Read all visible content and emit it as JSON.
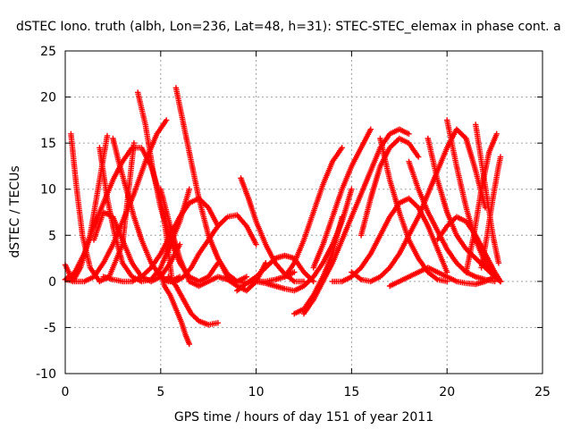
{
  "chart_data": {
    "type": "scatter",
    "title": "dSTEC Iono. truth (albh, Lon=236, Lat=48, h=31): STEC-STEC_elemax in phase cont. a",
    "xlabel": "GPS time / hours of day 151 of year 2011",
    "ylabel": "dSTEC  / TECUs",
    "xlim": [
      0,
      25
    ],
    "ylim": [
      -10,
      25
    ],
    "xticks": [
      "0",
      "5",
      "10",
      "15",
      "20",
      "25"
    ],
    "yticks": [
      "-10",
      "-5",
      "0",
      "5",
      "10",
      "15",
      "20",
      "25"
    ],
    "grid": true,
    "marker": "+",
    "color": "#ff0000",
    "series": [
      {
        "x": [
          0.0,
          0.4,
          0.8,
          1.3,
          1.8,
          2.2
        ],
        "y": [
          1.8,
          0.0,
          1.5,
          5.0,
          11.0,
          15.8
        ]
      },
      {
        "x": [
          0.3,
          0.6,
          0.9,
          1.3,
          1.8,
          2.3,
          3.0,
          3.6
        ],
        "y": [
          16.0,
          10.0,
          5.0,
          1.5,
          0.0,
          0.5,
          4.0,
          15.0
        ]
      },
      {
        "x": [
          0.0,
          0.5,
          1.0,
          1.5,
          2.0,
          2.5,
          3.0,
          3.5,
          4.0,
          4.5,
          5.0,
          5.3,
          5.6
        ],
        "y": [
          0.2,
          1.0,
          3.0,
          6.0,
          8.5,
          11.0,
          13.0,
          14.5,
          14.5,
          12.5,
          9.0,
          5.0,
          0.0
        ]
      },
      {
        "x": [
          0.0,
          0.5,
          1.0,
          1.5,
          2.0,
          2.5,
          3.0,
          3.6,
          4.2,
          4.8,
          5.3
        ],
        "y": [
          0.2,
          0.0,
          0.0,
          0.5,
          2.0,
          4.0,
          6.5,
          9.5,
          13.0,
          16.0,
          17.5
        ]
      },
      {
        "x": [
          1.5,
          2.0,
          2.5,
          3.0,
          3.5,
          4.0,
          4.5,
          5.0,
          5.5,
          6.0
        ],
        "y": [
          4.5,
          7.5,
          7.0,
          4.5,
          2.0,
          0.5,
          0.0,
          0.5,
          2.0,
          4.0
        ]
      },
      {
        "x": [
          1.8,
          2.2,
          2.6,
          3.0,
          3.5,
          4.0,
          4.5,
          5.0,
          5.5,
          6.0,
          6.5
        ],
        "y": [
          14.5,
          9.0,
          5.0,
          2.0,
          0.5,
          0.0,
          0.2,
          1.5,
          4.0,
          6.5,
          10.0
        ]
      },
      {
        "x": [
          2.0,
          2.5,
          3.0,
          3.5,
          4.0,
          4.5,
          5.0,
          5.5,
          6.0,
          6.5,
          7.0,
          7.5,
          8.0
        ],
        "y": [
          0.5,
          0.2,
          0.0,
          0.0,
          0.5,
          1.5,
          3.0,
          5.0,
          7.0,
          8.5,
          9.0,
          8.0,
          6.0
        ]
      },
      {
        "x": [
          2.5,
          2.8,
          3.2,
          3.6,
          4.0,
          4.5,
          5.0,
          5.5,
          6.0
        ],
        "y": [
          15.5,
          13.0,
          10.0,
          7.0,
          4.5,
          2.0,
          0.5,
          0.0,
          0.5
        ]
      },
      {
        "x": [
          3.8,
          4.2,
          4.6,
          5.0,
          5.5,
          6.0,
          6.5,
          7.0,
          7.5,
          8.0
        ],
        "y": [
          20.5,
          17.0,
          12.0,
          8.0,
          4.5,
          2.0,
          0.5,
          0.0,
          0.5,
          2.0
        ]
      },
      {
        "x": [
          5.0,
          5.4,
          5.8,
          6.2,
          6.6,
          7.0,
          7.5,
          8.0,
          8.5,
          9.0,
          9.5,
          10.0
        ],
        "y": [
          0.5,
          0.0,
          0.0,
          0.5,
          1.5,
          3.0,
          4.5,
          6.0,
          7.0,
          7.2,
          6.0,
          4.0
        ]
      },
      {
        "x": [
          5.8,
          6.2,
          6.6,
          7.0,
          7.5,
          8.0,
          8.5,
          9.0,
          9.5
        ],
        "y": [
          21.0,
          17.0,
          13.0,
          9.0,
          5.0,
          2.5,
          0.5,
          0.0,
          0.5
        ]
      },
      {
        "x": [
          5.0,
          5.2,
          5.5,
          5.8,
          6.1,
          6.3,
          6.5
        ],
        "y": [
          1.0,
          -0.5,
          -1.5,
          -3.0,
          -4.5,
          -5.8,
          -6.8
        ]
      },
      {
        "x": [
          5.4,
          5.8,
          6.2,
          6.6,
          7.0,
          7.5,
          8.0
        ],
        "y": [
          0.5,
          -0.5,
          -2.0,
          -3.5,
          -4.3,
          -4.7,
          -4.5
        ]
      },
      {
        "x": [
          5.0,
          5.5,
          6.0,
          6.5,
          7.0,
          7.5,
          8.0,
          8.5,
          9.0,
          9.5,
          10.0,
          10.5
        ],
        "y": [
          10.0,
          6.0,
          2.5,
          0.0,
          -0.5,
          0.0,
          0.5,
          0.2,
          -0.5,
          -1.0,
          0.0,
          2.0
        ]
      },
      {
        "x": [
          7.5,
          8.0,
          8.5,
          9.0,
          9.5,
          10.0,
          10.5,
          11.0,
          11.5,
          12.0
        ],
        "y": [
          5.0,
          2.5,
          0.8,
          0.0,
          -0.2,
          0.0,
          0.0,
          0.2,
          0.5,
          1.0
        ]
      },
      {
        "x": [
          9.0,
          9.5,
          10.0,
          10.5,
          11.0,
          11.5,
          12.0,
          12.5,
          13.0
        ],
        "y": [
          -1.0,
          -0.2,
          0.5,
          1.5,
          2.5,
          2.8,
          2.5,
          1.0,
          0.0
        ]
      },
      {
        "x": [
          9.2,
          9.6,
          10.0,
          10.5,
          11.0,
          11.5,
          12.0,
          12.5
        ],
        "y": [
          11.2,
          9.0,
          6.5,
          4.0,
          2.0,
          0.8,
          0.0,
          0.0
        ]
      },
      {
        "x": [
          10.0,
          10.5,
          11.0,
          11.5,
          12.0,
          12.5,
          13.0,
          13.5,
          14.0,
          14.5,
          15.0
        ],
        "y": [
          0.0,
          -0.2,
          -0.5,
          -0.8,
          -1.0,
          -0.5,
          0.5,
          2.0,
          4.0,
          6.5,
          10.0
        ]
      },
      {
        "x": [
          12.0,
          12.5,
          13.0,
          13.5,
          14.0,
          14.5
        ],
        "y": [
          -3.5,
          -3.0,
          -1.5,
          0.5,
          3.0,
          7.0
        ]
      },
      {
        "x": [
          12.5,
          13.0,
          13.5,
          14.0,
          14.5,
          15.0,
          15.5,
          16.0,
          16.5,
          17.0,
          17.5,
          18.0
        ],
        "y": [
          -3.5,
          -2.0,
          0.0,
          2.0,
          4.5,
          7.0,
          9.5,
          12.0,
          14.5,
          16.0,
          16.5,
          16.0
        ]
      },
      {
        "x": [
          11.5,
          12.0,
          12.5,
          13.0,
          13.5,
          14.0,
          14.5
        ],
        "y": [
          0.5,
          2.0,
          4.5,
          7.5,
          10.5,
          13.0,
          14.5
        ]
      },
      {
        "x": [
          13.0,
          13.5,
          14.0,
          14.5,
          15.0,
          15.5,
          16.0
        ],
        "y": [
          1.5,
          4.0,
          7.0,
          10.0,
          12.5,
          14.5,
          16.5
        ]
      },
      {
        "x": [
          14.0,
          14.5,
          15.0,
          15.5,
          16.0,
          16.5,
          17.0,
          17.5,
          18.0,
          18.5,
          19.0,
          19.5,
          20.0
        ],
        "y": [
          0.0,
          0.0,
          0.5,
          1.5,
          3.0,
          5.0,
          7.0,
          8.5,
          9.0,
          8.0,
          6.0,
          3.5,
          1.0
        ]
      },
      {
        "x": [
          15.0,
          15.5,
          16.0,
          16.5,
          17.0,
          17.5,
          18.0,
          18.5,
          19.0,
          19.5,
          20.0,
          20.5,
          21.0,
          21.5,
          22.0
        ],
        "y": [
          1.0,
          0.2,
          0.0,
          0.5,
          1.5,
          3.0,
          5.0,
          7.0,
          9.5,
          12.0,
          14.5,
          16.5,
          15.5,
          12.0,
          8.0
        ]
      },
      {
        "x": [
          15.5,
          16.0,
          16.5,
          17.0,
          17.5,
          18.0,
          18.5
        ],
        "y": [
          5.0,
          9.0,
          12.5,
          14.5,
          15.5,
          15.0,
          13.5
        ]
      },
      {
        "x": [
          16.5,
          17.0,
          17.5,
          18.0,
          18.5,
          19.0,
          19.5,
          20.0
        ],
        "y": [
          15.5,
          11.0,
          7.5,
          4.5,
          2.5,
          1.0,
          0.2,
          0.0
        ]
      },
      {
        "x": [
          17.0,
          17.5,
          18.0,
          18.5,
          19.0,
          19.5,
          20.0,
          20.5,
          21.0,
          21.5,
          22.0,
          22.5
        ],
        "y": [
          -0.5,
          0.0,
          0.5,
          1.0,
          1.5,
          1.0,
          0.5,
          0.0,
          -0.2,
          -0.3,
          0.0,
          0.5
        ]
      },
      {
        "x": [
          18.0,
          18.5,
          19.0,
          19.5,
          20.0,
          20.5,
          21.0,
          21.5,
          22.0,
          22.5
        ],
        "y": [
          13.0,
          10.0,
          7.5,
          5.5,
          3.5,
          2.0,
          1.0,
          0.5,
          0.2,
          0.0
        ]
      },
      {
        "x": [
          19.0,
          19.5,
          20.0,
          20.5,
          21.0,
          21.5,
          22.0,
          22.5,
          22.8
        ],
        "y": [
          15.5,
          11.0,
          7.5,
          5.0,
          3.5,
          2.5,
          1.5,
          0.5,
          0.0
        ]
      },
      {
        "x": [
          20.0,
          20.5,
          21.0,
          21.5,
          22.0,
          22.5,
          22.8
        ],
        "y": [
          17.5,
          12.5,
          8.0,
          4.5,
          2.0,
          0.5,
          0.0
        ]
      },
      {
        "x": [
          19.5,
          20.0,
          20.5,
          21.0,
          21.5,
          22.0,
          22.5,
          22.8
        ],
        "y": [
          4.5,
          6.0,
          7.0,
          6.5,
          5.0,
          3.0,
          1.0,
          0.0
        ]
      },
      {
        "x": [
          21.0,
          21.4,
          21.8,
          22.2,
          22.6
        ],
        "y": [
          1.0,
          5.0,
          10.0,
          14.0,
          16.0
        ]
      },
      {
        "x": [
          21.5,
          21.8,
          22.1,
          22.4,
          22.7
        ],
        "y": [
          17.0,
          13.0,
          9.0,
          5.0,
          2.0
        ]
      },
      {
        "x": [
          21.8,
          22.1,
          22.4,
          22.7,
          22.8
        ],
        "y": [
          1.5,
          5.0,
          9.0,
          12.5,
          13.5
        ]
      }
    ]
  }
}
